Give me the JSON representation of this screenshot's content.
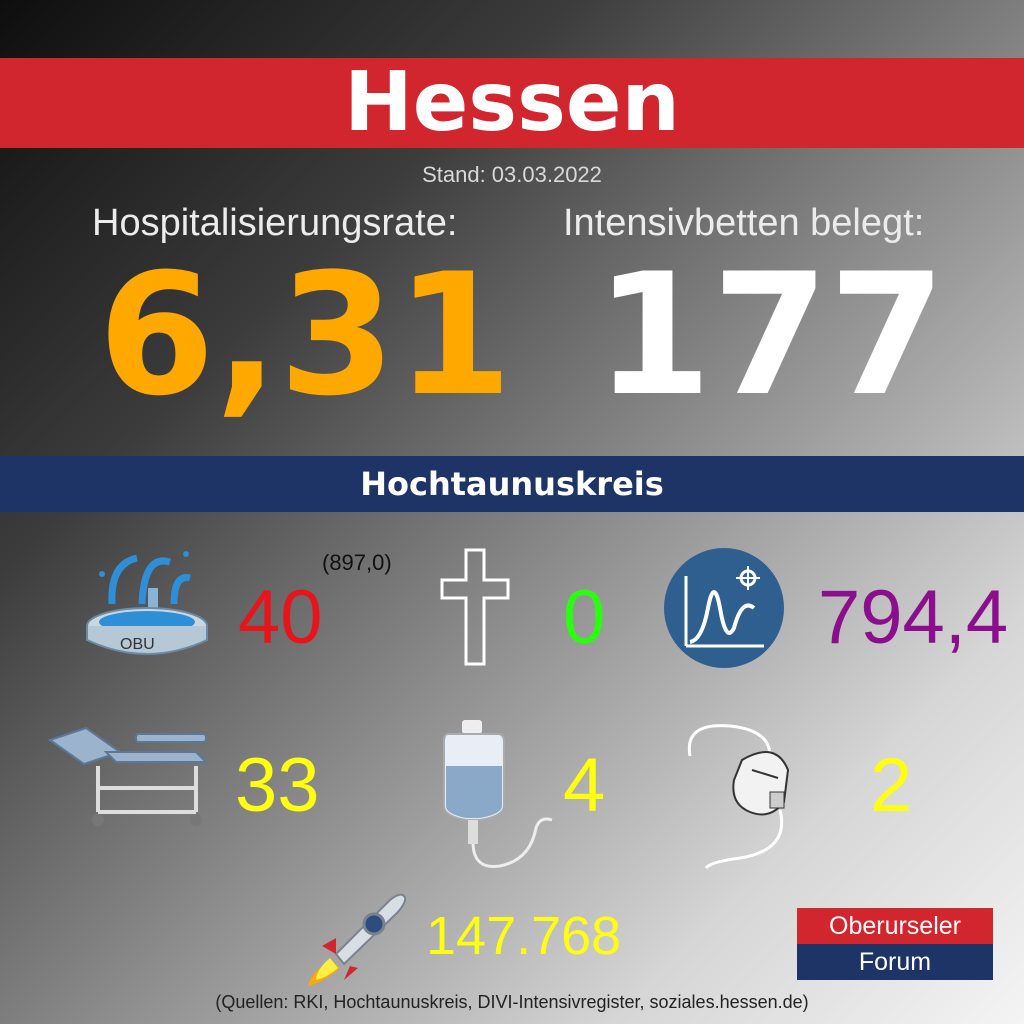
{
  "header": {
    "title": "Hessen",
    "stand": "Stand: 03.03.2022"
  },
  "hessen": {
    "hosp_label": "Hospitalisierungsrate:",
    "hosp_value": "6,31",
    "icu_label": "Intensivbetten belegt:",
    "icu_value": "177"
  },
  "region": {
    "title": "Hochtaunuskreis"
  },
  "stats": {
    "fountain_text": "OBU",
    "new_cases": "40",
    "new_cases_incidence": "(897,0)",
    "deaths": "0",
    "incidence": "794,4",
    "hospital": "33",
    "iv": "4",
    "ventilated": "2",
    "vaccinations": "147.768"
  },
  "colors": {
    "orange": "#ffa800",
    "red": "#e8141b",
    "green": "#2bff10",
    "purple": "#8b0e8c",
    "yellow": "#ffff10"
  },
  "logo": {
    "line1": "Oberurseler",
    "line2": "Forum"
  },
  "footer": {
    "sources": "(Quellen: RKI, Hochtaunuskreis, DIVI-Intensivregister, soziales.hessen.de)"
  }
}
